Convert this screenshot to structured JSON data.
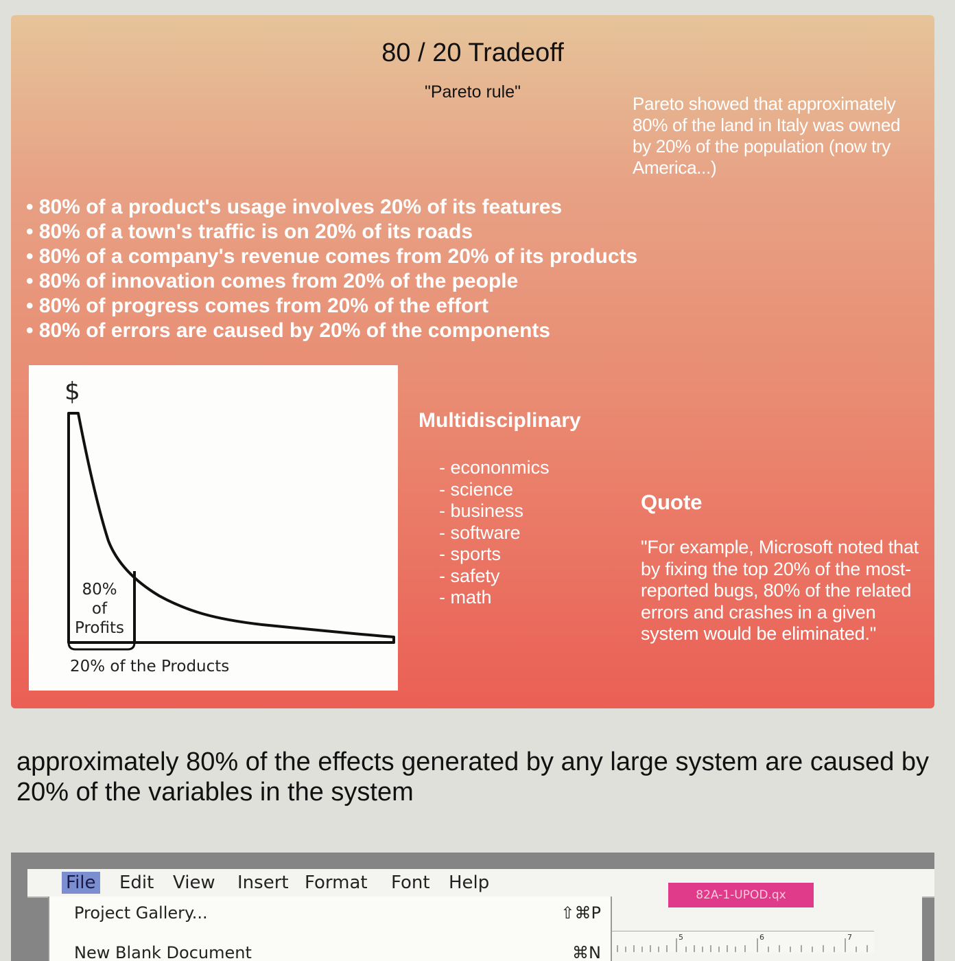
{
  "slide": {
    "title": "80 / 20 Tradeoff",
    "subtitle": "\"Pareto rule\"",
    "pareto_note": "Pareto showed that approximately 80% of the land in Italy was owned by 20% of the population (now try America...)",
    "bullets": [
      "• 80% of a product's usage involves 20% of its features",
      "• 80% of a town's traffic is on 20% of its roads",
      "• 80% of a company's revenue comes from 20% of its products",
      "• 80% of innovation comes from 20% of the people",
      "• 80% of progress comes from 20% of the effort",
      "• 80% of errors are caused by 20% of the components"
    ],
    "multidisciplinary": {
      "title": "Multidisciplinary",
      "items": [
        "- econonmics",
        "- science",
        "- business",
        "- software",
        "- sports",
        "- safety",
        "- math"
      ]
    },
    "quote": {
      "title": "Quote",
      "text": "\"For example, Microsoft noted that by fixing the top 20% of the most-reported bugs, 80% of the related errors and crashes in a given system would be eliminated.\""
    },
    "colors": {
      "gradient_top": "#e6c49a",
      "gradient_bottom": "#eb5f55",
      "text_light": "#ffffff"
    }
  },
  "chart_data": {
    "type": "area",
    "y_axis_symbol": "$",
    "area_label": [
      "80%",
      "of",
      "Profits"
    ],
    "bracket_label": "20% of the Products",
    "shaded_fraction_of_products": 0.2,
    "shaded_fraction_of_profits": 0.8
  },
  "statement": "approximately 80% of the effects generated by any large system are caused by 20% of the variables in the system",
  "embedded_screenshot": {
    "menu": [
      "File",
      "Edit",
      "View",
      "Insert",
      "Format",
      "Font",
      "Help"
    ],
    "dropdown_items": [
      {
        "label": "Project Gallery...",
        "shortcut": "⇧⌘P"
      },
      {
        "label": "New Blank Document",
        "shortcut": "⌘N"
      }
    ],
    "doc_tab": "82A-1-UPOD.qx",
    "ruler_marks": [
      "5",
      "6",
      "7"
    ]
  }
}
